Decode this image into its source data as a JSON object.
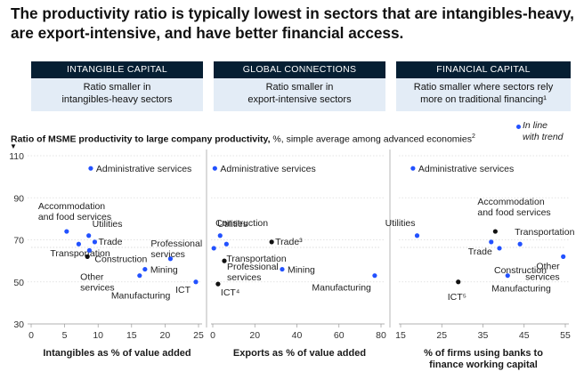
{
  "headline": "The productivity ratio is typically lowest in sectors that are intangibles-heavy, are export-intensive, and have better financial access.",
  "columns": [
    {
      "header": "INTANGIBLE CAPITAL",
      "line1": "Ratio smaller in",
      "line2": "intangibles-heavy sectors"
    },
    {
      "header": "GLOBAL CONNECTIONS",
      "line1": "Ratio smaller in",
      "line2": "export-intensive sectors"
    },
    {
      "header": "FINANCIAL CAPITAL",
      "line1": "Ratio smaller where sectors rely",
      "line2": "more on traditional financing¹"
    }
  ],
  "legend": {
    "trend_label_1": "In line",
    "trend_label_2": "with trend"
  },
  "y_title": {
    "bold": "Ratio of MSME productivity to large company productivity,",
    "rest": " %, simple average among advanced economies",
    "sup": "2"
  },
  "colors": {
    "in_trend": "#2251ff",
    "off_trend": "#111111",
    "header_bg": "#061f33",
    "box_bg": "#e3ecf6"
  },
  "chart_data": [
    {
      "type": "scatter",
      "xlabel": "Intangibles as % of value added",
      "xlim": [
        0,
        25
      ],
      "ylim": [
        30,
        110
      ],
      "xticks": [
        0,
        5,
        10,
        15,
        20,
        25
      ],
      "yticks": [
        30,
        50,
        70,
        90,
        110
      ],
      "points": [
        {
          "label": "Administrative services",
          "x": 8.9,
          "y": 104,
          "in_trend": true
        },
        {
          "label": "Accommodation and food services",
          "x": 5.3,
          "y": 74,
          "in_trend": true
        },
        {
          "label": "Utilities",
          "x": 8.6,
          "y": 72,
          "in_trend": true
        },
        {
          "label": "Trade",
          "x": 9.5,
          "y": 69,
          "in_trend": true
        },
        {
          "label": "Transportation",
          "x": 7.1,
          "y": 68,
          "in_trend": true
        },
        {
          "label": "Construction",
          "x": 8.7,
          "y": 65,
          "in_trend": true
        },
        {
          "label": "Other services",
          "x": 8.4,
          "y": 62,
          "in_trend": false
        },
        {
          "label": "Professional services",
          "x": 20.8,
          "y": 61,
          "in_trend": true
        },
        {
          "label": "Mining",
          "x": 17.0,
          "y": 56,
          "in_trend": true
        },
        {
          "label": "Manufacturing",
          "x": 16.2,
          "y": 53,
          "in_trend": true
        },
        {
          "label": "ICT",
          "x": 24.6,
          "y": 50,
          "in_trend": true
        }
      ]
    },
    {
      "type": "scatter",
      "xlabel": "Exports as % of value added",
      "xlim": [
        0,
        80
      ],
      "ylim": [
        30,
        110
      ],
      "xticks": [
        0,
        20,
        40,
        60,
        80
      ],
      "yticks": [
        30,
        50,
        70,
        90,
        110
      ],
      "points": [
        {
          "label": "Administrative services",
          "x": 1,
          "y": 104,
          "in_trend": true
        },
        {
          "label": "Construction",
          "x": 0.5,
          "y": 66,
          "in_trend": true
        },
        {
          "label": "Utilities",
          "x": 3.5,
          "y": 72,
          "in_trend": true
        },
        {
          "label": "Trade³",
          "x": 28,
          "y": 69,
          "in_trend": false
        },
        {
          "label": "Transportation",
          "x": 6.5,
          "y": 68,
          "in_trend": true
        },
        {
          "label": "Professional services",
          "x": 5.5,
          "y": 60,
          "in_trend": false
        },
        {
          "label": "Mining",
          "x": 33,
          "y": 56,
          "in_trend": true
        },
        {
          "label": "Manufacturing",
          "x": 77,
          "y": 53,
          "in_trend": true
        },
        {
          "label": "ICT⁴",
          "x": 2.5,
          "y": 49,
          "in_trend": false
        }
      ]
    },
    {
      "type": "scatter",
      "xlabel": "% of firms using banks to finance working capital",
      "xlim": [
        15,
        55
      ],
      "ylim": [
        30,
        110
      ],
      "xticks": [
        15,
        25,
        35,
        45,
        55
      ],
      "yticks": [
        30,
        50,
        70,
        90,
        110
      ],
      "points": [
        {
          "label": "Administrative services",
          "x": 18,
          "y": 104,
          "in_trend": true
        },
        {
          "label": "Utilities",
          "x": 19,
          "y": 72,
          "in_trend": true
        },
        {
          "label": "Accommodation and food services",
          "x": 38,
          "y": 74,
          "in_trend": false
        },
        {
          "label": "Transportation",
          "x": 44,
          "y": 68,
          "in_trend": true
        },
        {
          "label": "Trade",
          "x": 37,
          "y": 69,
          "in_trend": true
        },
        {
          "label": "Construction",
          "x": 39,
          "y": 66,
          "in_trend": true
        },
        {
          "label": "Other services",
          "x": 54.5,
          "y": 62,
          "in_trend": true
        },
        {
          "label": "Manufacturing",
          "x": 41,
          "y": 53,
          "in_trend": true
        },
        {
          "label": "ICT⁵",
          "x": 29,
          "y": 50,
          "in_trend": false
        }
      ]
    }
  ]
}
